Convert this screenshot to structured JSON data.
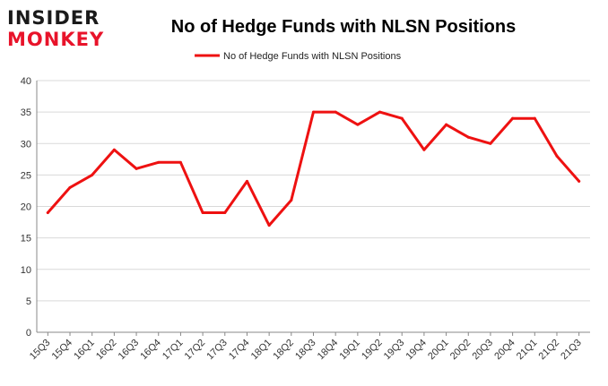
{
  "logo": {
    "line1": "INSIDER",
    "line2": "MONKEY"
  },
  "colors": {
    "series": "#ee1111",
    "logo_red": "#e8132a",
    "grid": "#d9d9d9"
  },
  "chart_data": {
    "type": "line",
    "title": "No of Hedge Funds with NLSN Positions",
    "xlabel": "",
    "ylabel": "",
    "ylim": [
      0,
      40
    ],
    "yticks": [
      0,
      5,
      10,
      15,
      20,
      25,
      30,
      35,
      40
    ],
    "grid": true,
    "legend_position": "top-center",
    "categories": [
      "15Q3",
      "15Q4",
      "16Q1",
      "16Q2",
      "16Q3",
      "16Q4",
      "17Q1",
      "17Q2",
      "17Q3",
      "17Q4",
      "18Q1",
      "18Q2",
      "18Q3",
      "18Q4",
      "19Q1",
      "19Q2",
      "19Q3",
      "19Q4",
      "20Q1",
      "20Q2",
      "20Q3",
      "20Q4",
      "21Q1",
      "21Q2",
      "21Q3"
    ],
    "series": [
      {
        "name": "No of Hedge Funds with NLSN Positions",
        "color": "#ee1111",
        "values": [
          19,
          23,
          25,
          29,
          26,
          27,
          27,
          19,
          19,
          24,
          17,
          21,
          35,
          35,
          33,
          35,
          34,
          29,
          33,
          31,
          30,
          34,
          34,
          28,
          24
        ]
      }
    ]
  }
}
